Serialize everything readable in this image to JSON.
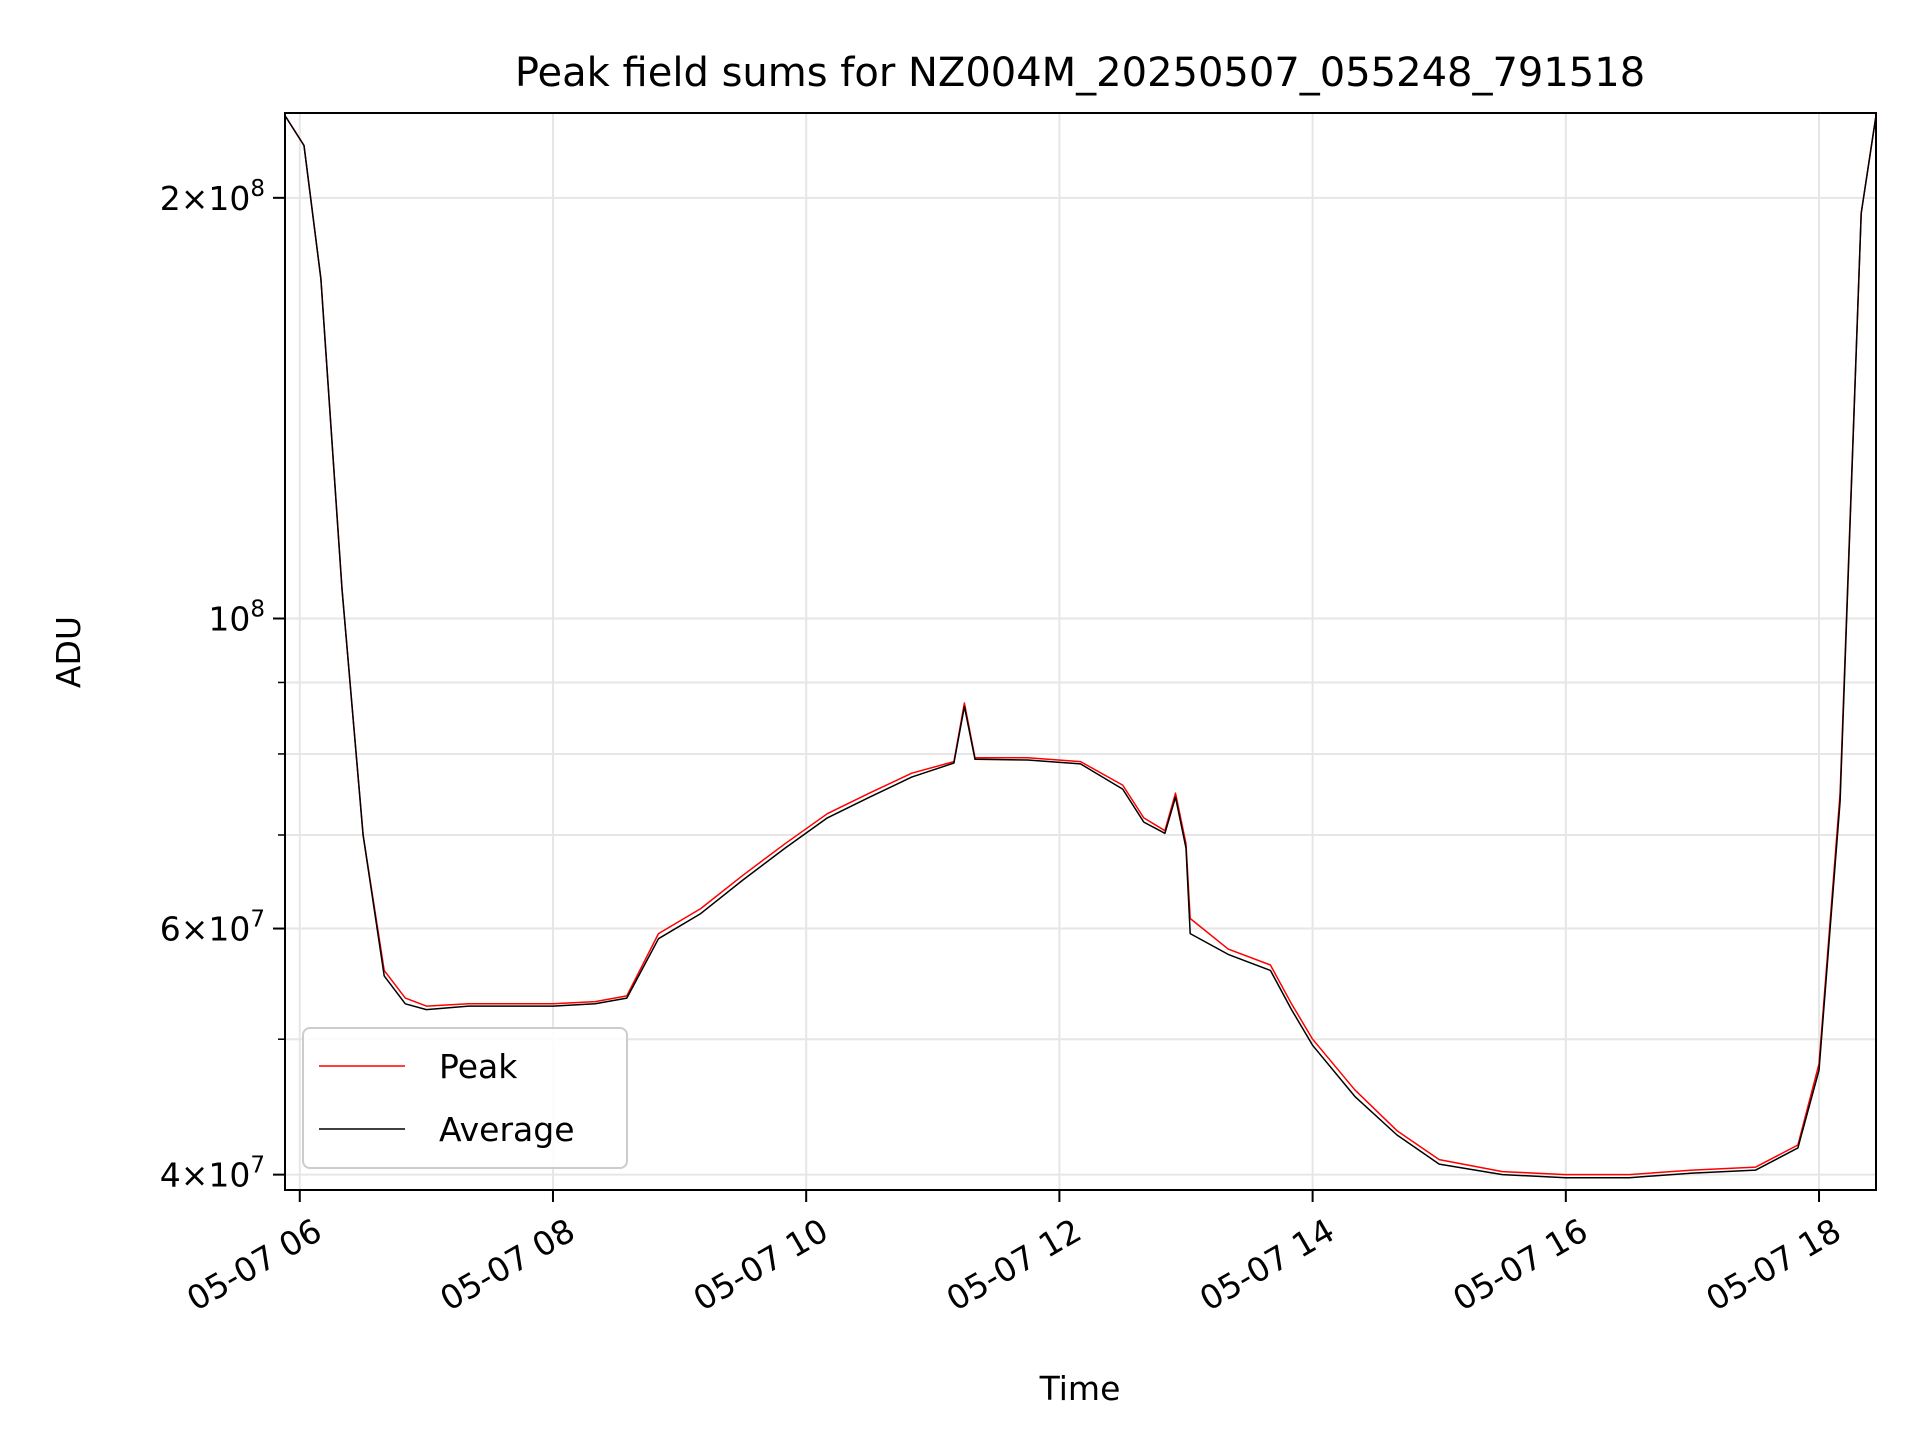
{
  "chart_data": {
    "type": "line",
    "title": "Peak field sums for NZ004M_20250507_055248_791518",
    "xlabel": "Time",
    "ylabel": "ADU",
    "y_scale": "log",
    "ylim": [
      39000000,
      230000000
    ],
    "xlim": [
      "2025-05-07 05:53",
      "2025-05-07 18:27"
    ],
    "grid": true,
    "legend_position": "lower-left",
    "x_ticks": [
      {
        "t": "2025-05-07 06:00",
        "label": "05-07 06"
      },
      {
        "t": "2025-05-07 08:00",
        "label": "05-07 08"
      },
      {
        "t": "2025-05-07 10:00",
        "label": "05-07 10"
      },
      {
        "t": "2025-05-07 12:00",
        "label": "05-07 12"
      },
      {
        "t": "2025-05-07 14:00",
        "label": "05-07 14"
      },
      {
        "t": "2025-05-07 16:00",
        "label": "05-07 16"
      },
      {
        "t": "2025-05-07 18:00",
        "label": "05-07 18"
      }
    ],
    "y_ticks": [
      {
        "v": 40000000,
        "mant": "4",
        "exp": "7"
      },
      {
        "v": 60000000,
        "mant": "6",
        "exp": "7"
      },
      {
        "v": 100000000,
        "mant": "",
        "exp": "8"
      },
      {
        "v": 200000000,
        "mant": "2",
        "exp": "8"
      }
    ],
    "y_minor_ticks": [
      50000000,
      70000000,
      80000000,
      90000000
    ],
    "series": [
      {
        "name": "Peak",
        "color": "#ff0000",
        "points": [
          [
            "2025-05-07 05:53",
            229000000
          ],
          [
            "2025-05-07 06:02",
            218000000
          ],
          [
            "2025-05-07 06:10",
            175000000
          ],
          [
            "2025-05-07 06:20",
            105000000
          ],
          [
            "2025-05-07 06:30",
            70000000
          ],
          [
            "2025-05-07 06:40",
            56000000
          ],
          [
            "2025-05-07 06:50",
            53500000
          ],
          [
            "2025-05-07 07:00",
            52800000
          ],
          [
            "2025-05-07 07:20",
            53000000
          ],
          [
            "2025-05-07 07:40",
            53000000
          ],
          [
            "2025-05-07 08:00",
            53000000
          ],
          [
            "2025-05-07 08:20",
            53200000
          ],
          [
            "2025-05-07 08:35",
            53700000
          ],
          [
            "2025-05-07 08:50",
            59500000
          ],
          [
            "2025-05-07 09:10",
            62000000
          ],
          [
            "2025-05-07 09:30",
            65500000
          ],
          [
            "2025-05-07 09:50",
            69000000
          ],
          [
            "2025-05-07 10:10",
            72500000
          ],
          [
            "2025-05-07 10:30",
            75000000
          ],
          [
            "2025-05-07 10:50",
            77500000
          ],
          [
            "2025-05-07 11:10",
            79000000
          ],
          [
            "2025-05-07 11:15",
            87000000
          ],
          [
            "2025-05-07 11:20",
            79500000
          ],
          [
            "2025-05-07 11:45",
            79500000
          ],
          [
            "2025-05-07 12:10",
            79000000
          ],
          [
            "2025-05-07 12:30",
            76000000
          ],
          [
            "2025-05-07 12:40",
            72000000
          ],
          [
            "2025-05-07 12:50",
            70500000
          ],
          [
            "2025-05-07 12:55",
            75000000
          ],
          [
            "2025-05-07 13:00",
            69000000
          ],
          [
            "2025-05-07 13:02",
            61000000
          ],
          [
            "2025-05-07 13:20",
            58000000
          ],
          [
            "2025-05-07 13:40",
            56500000
          ],
          [
            "2025-05-07 13:50",
            53000000
          ],
          [
            "2025-05-07 14:00",
            50000000
          ],
          [
            "2025-05-07 14:20",
            46000000
          ],
          [
            "2025-05-07 14:40",
            43000000
          ],
          [
            "2025-05-07 15:00",
            41000000
          ],
          [
            "2025-05-07 15:30",
            40200000
          ],
          [
            "2025-05-07 16:00",
            40000000
          ],
          [
            "2025-05-07 16:30",
            40000000
          ],
          [
            "2025-05-07 17:00",
            40300000
          ],
          [
            "2025-05-07 17:30",
            40500000
          ],
          [
            "2025-05-07 17:50",
            42000000
          ],
          [
            "2025-05-07 18:00",
            48000000
          ],
          [
            "2025-05-07 18:10",
            75000000
          ],
          [
            "2025-05-07 18:20",
            195000000
          ],
          [
            "2025-05-07 18:27",
            229000000
          ]
        ]
      },
      {
        "name": "Average",
        "color": "#000000",
        "points": [
          [
            "2025-05-07 05:53",
            229000000
          ],
          [
            "2025-05-07 06:02",
            218000000
          ],
          [
            "2025-05-07 06:10",
            175000000
          ],
          [
            "2025-05-07 06:20",
            105000000
          ],
          [
            "2025-05-07 06:30",
            70000000
          ],
          [
            "2025-05-07 06:40",
            55500000
          ],
          [
            "2025-05-07 06:50",
            53000000
          ],
          [
            "2025-05-07 07:00",
            52500000
          ],
          [
            "2025-05-07 07:20",
            52800000
          ],
          [
            "2025-05-07 07:40",
            52800000
          ],
          [
            "2025-05-07 08:00",
            52800000
          ],
          [
            "2025-05-07 08:20",
            53000000
          ],
          [
            "2025-05-07 08:35",
            53500000
          ],
          [
            "2025-05-07 08:50",
            59000000
          ],
          [
            "2025-05-07 09:10",
            61500000
          ],
          [
            "2025-05-07 09:30",
            65000000
          ],
          [
            "2025-05-07 09:50",
            68500000
          ],
          [
            "2025-05-07 10:10",
            72000000
          ],
          [
            "2025-05-07 10:30",
            74500000
          ],
          [
            "2025-05-07 10:50",
            77000000
          ],
          [
            "2025-05-07 11:10",
            78800000
          ],
          [
            "2025-05-07 11:15",
            86500000
          ],
          [
            "2025-05-07 11:20",
            79300000
          ],
          [
            "2025-05-07 11:45",
            79200000
          ],
          [
            "2025-05-07 12:10",
            78700000
          ],
          [
            "2025-05-07 12:30",
            75500000
          ],
          [
            "2025-05-07 12:40",
            71500000
          ],
          [
            "2025-05-07 12:50",
            70200000
          ],
          [
            "2025-05-07 12:55",
            74500000
          ],
          [
            "2025-05-07 13:00",
            68500000
          ],
          [
            "2025-05-07 13:02",
            59500000
          ],
          [
            "2025-05-07 13:20",
            57500000
          ],
          [
            "2025-05-07 13:40",
            56000000
          ],
          [
            "2025-05-07 13:50",
            52500000
          ],
          [
            "2025-05-07 14:00",
            49500000
          ],
          [
            "2025-05-07 14:20",
            45500000
          ],
          [
            "2025-05-07 14:40",
            42700000
          ],
          [
            "2025-05-07 15:00",
            40700000
          ],
          [
            "2025-05-07 15:30",
            40000000
          ],
          [
            "2025-05-07 16:00",
            39800000
          ],
          [
            "2025-05-07 16:30",
            39800000
          ],
          [
            "2025-05-07 17:00",
            40100000
          ],
          [
            "2025-05-07 17:30",
            40300000
          ],
          [
            "2025-05-07 17:50",
            41800000
          ],
          [
            "2025-05-07 18:00",
            47500000
          ],
          [
            "2025-05-07 18:10",
            74000000
          ],
          [
            "2025-05-07 18:20",
            195000000
          ],
          [
            "2025-05-07 18:27",
            229000000
          ]
        ]
      }
    ]
  }
}
